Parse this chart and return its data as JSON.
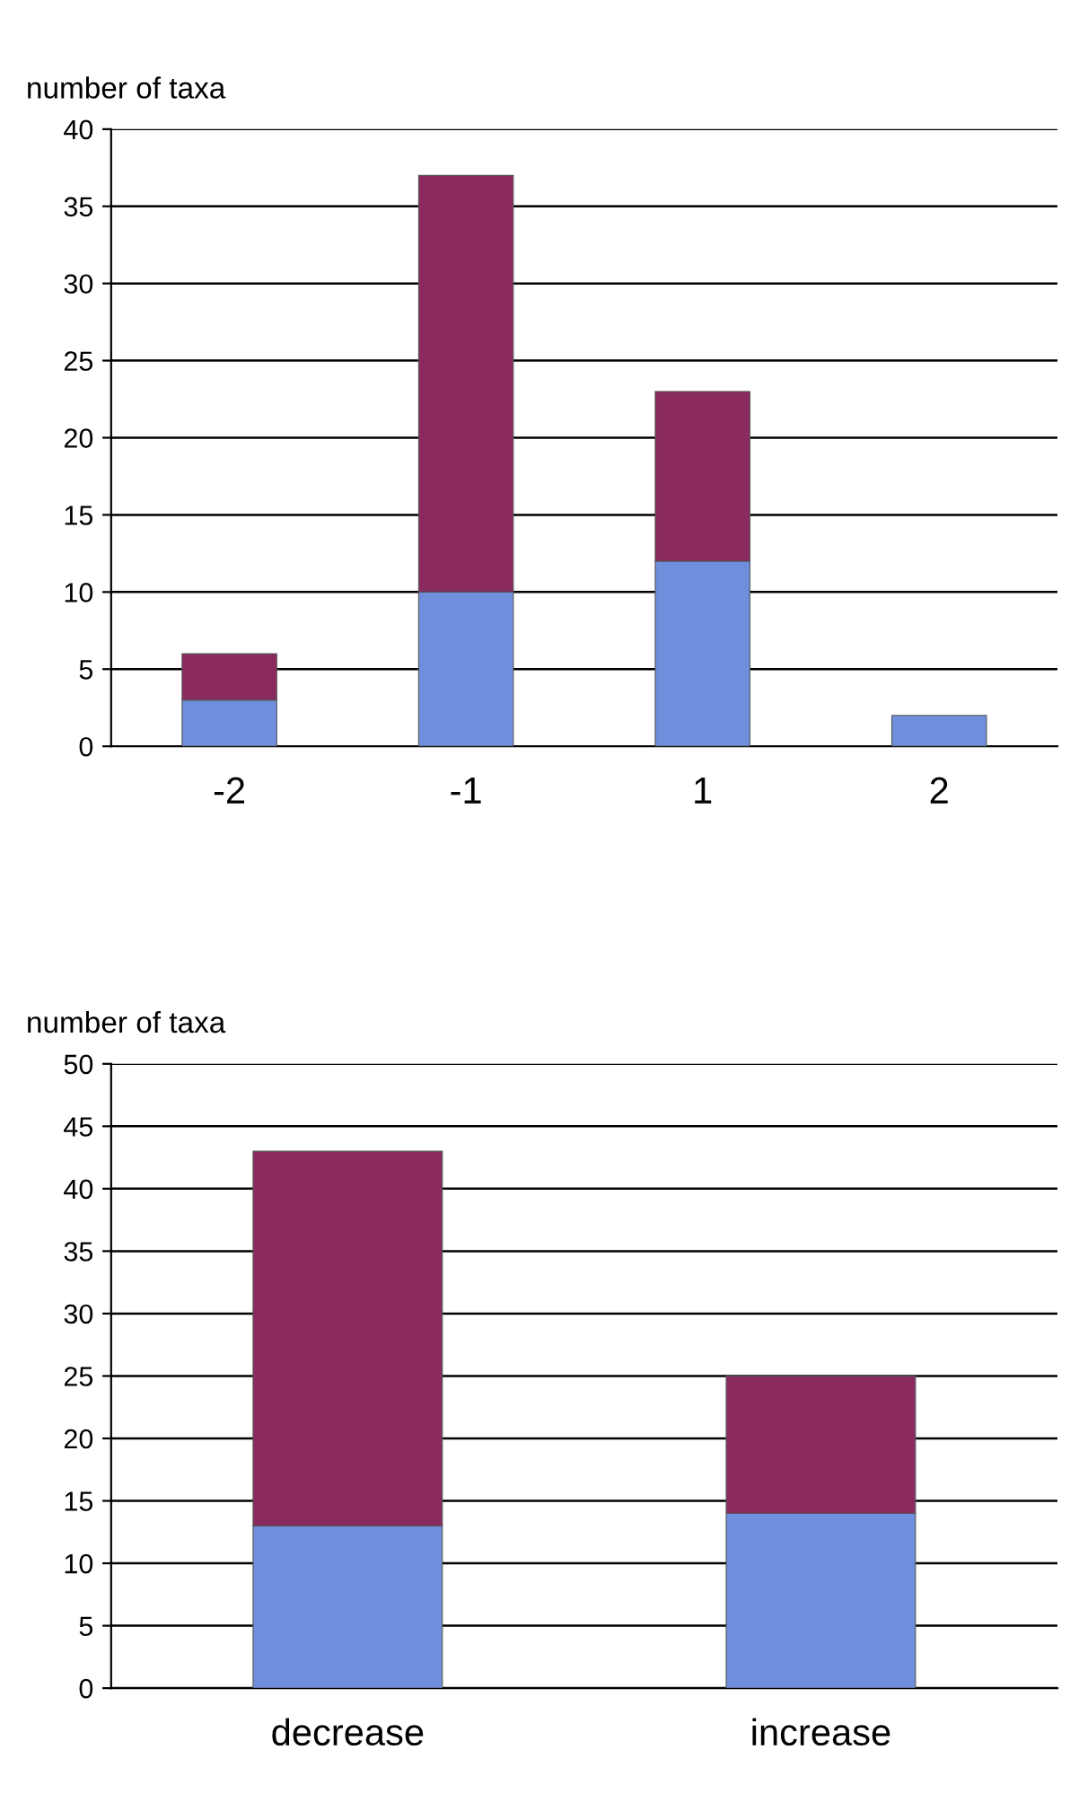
{
  "chart_data": [
    {
      "type": "bar",
      "ylabel": "number of taxa",
      "categories": [
        "-2",
        "-1",
        "1",
        "2"
      ],
      "stacked": true,
      "ylim": [
        0,
        40
      ],
      "yticks": [
        0,
        5,
        10,
        15,
        20,
        25,
        30,
        35,
        40
      ],
      "grid": "y",
      "legend": false,
      "series": [
        {
          "color": "#6f8fdc",
          "values": [
            3,
            10,
            12,
            2
          ]
        },
        {
          "color": "#8a2a5e",
          "values": [
            3,
            27,
            11,
            null
          ]
        }
      ]
    },
    {
      "type": "bar",
      "ylabel": "number of taxa",
      "categories": [
        "decrease",
        "increase"
      ],
      "stacked": true,
      "ylim": [
        0,
        50
      ],
      "yticks": [
        0,
        5,
        10,
        15,
        20,
        25,
        30,
        35,
        40,
        45,
        50
      ],
      "grid": "y",
      "legend": false,
      "series": [
        {
          "color": "#6f8fdc",
          "values": [
            13,
            14
          ]
        },
        {
          "color": "#8a2a5e",
          "values": [
            30,
            11
          ]
        }
      ]
    }
  ]
}
